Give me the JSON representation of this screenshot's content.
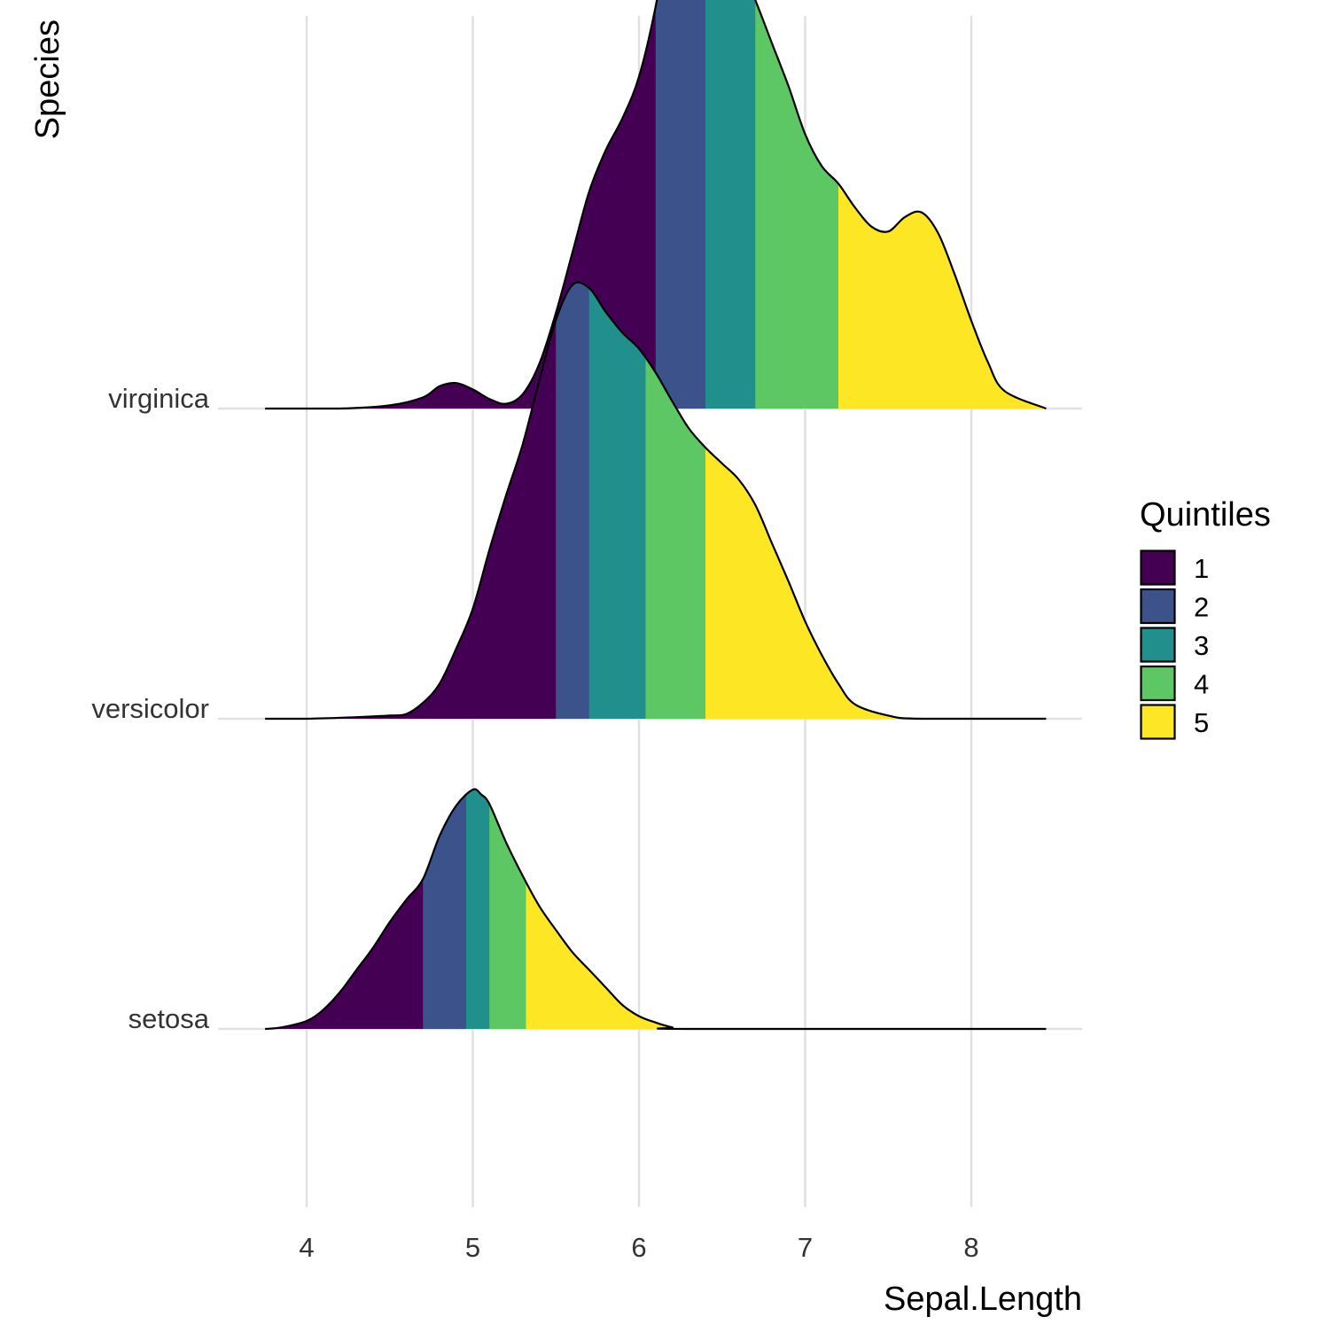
{
  "chart_data": {
    "type": "ridgeline",
    "xlabel": "Sepal.Length",
    "ylabel": "Species",
    "xlim": [
      3.75,
      8.45
    ],
    "x_ticks": [
      4,
      5,
      6,
      7,
      8
    ],
    "x_tick_labels": [
      "4",
      "5",
      "6",
      "7",
      "8"
    ],
    "grid": true,
    "legend": {
      "title": "Quintiles",
      "position": "right",
      "items": [
        {
          "label": "1",
          "color": "#440154"
        },
        {
          "label": "2",
          "color": "#3B528B"
        },
        {
          "label": "3",
          "color": "#21908C"
        },
        {
          "label": "4",
          "color": "#5DC863"
        },
        {
          "label": "5",
          "color": "#FDE725"
        }
      ]
    },
    "series": [
      {
        "name": "setosa",
        "quintile_breaks": [
          4.7,
          4.96,
          5.1,
          5.32
        ],
        "density_x": [
          3.75,
          3.85,
          4.0,
          4.1,
          4.2,
          4.3,
          4.4,
          4.5,
          4.6,
          4.7,
          4.8,
          4.9,
          5.0,
          5.05,
          5.1,
          5.2,
          5.3,
          5.4,
          5.5,
          5.6,
          5.7,
          5.8,
          5.9,
          6.0,
          6.1,
          6.2,
          6.3,
          8.45
        ],
        "density_y": [
          0.0,
          0.01,
          0.05,
          0.12,
          0.23,
          0.37,
          0.51,
          0.67,
          0.81,
          0.94,
          1.21,
          1.4,
          1.5,
          1.47,
          1.41,
          1.17,
          0.96,
          0.77,
          0.62,
          0.48,
          0.37,
          0.26,
          0.15,
          0.08,
          0.04,
          0.01,
          0.0,
          0.0
        ]
      },
      {
        "name": "versicolor",
        "quintile_breaks": [
          5.5,
          5.7,
          6.04,
          6.4
        ],
        "density_x": [
          3.75,
          4.0,
          4.3,
          4.5,
          4.6,
          4.7,
          4.8,
          4.9,
          5.0,
          5.1,
          5.2,
          5.3,
          5.4,
          5.5,
          5.6,
          5.7,
          5.8,
          5.9,
          6.0,
          6.1,
          6.2,
          6.3,
          6.4,
          6.5,
          6.6,
          6.7,
          6.8,
          6.9,
          7.0,
          7.1,
          7.2,
          7.3,
          7.5,
          7.7,
          8.45
        ],
        "density_y": [
          0.0,
          0.0,
          0.01,
          0.02,
          0.03,
          0.1,
          0.22,
          0.44,
          0.69,
          1.06,
          1.4,
          1.72,
          2.12,
          2.5,
          2.72,
          2.7,
          2.55,
          2.42,
          2.32,
          2.17,
          1.99,
          1.82,
          1.7,
          1.6,
          1.5,
          1.34,
          1.1,
          0.86,
          0.61,
          0.4,
          0.22,
          0.09,
          0.02,
          0.0,
          0.0
        ]
      },
      {
        "name": "virginica",
        "quintile_breaks": [
          6.1,
          6.4,
          6.7,
          7.2
        ],
        "density_x": [
          3.75,
          4.2,
          4.5,
          4.7,
          4.8,
          4.9,
          5.0,
          5.1,
          5.2,
          5.3,
          5.4,
          5.5,
          5.6,
          5.7,
          5.8,
          5.9,
          6.0,
          6.1,
          6.2,
          6.3,
          6.4,
          6.5,
          6.6,
          6.7,
          6.8,
          6.9,
          7.0,
          7.1,
          7.2,
          7.3,
          7.4,
          7.5,
          7.6,
          7.7,
          7.8,
          7.9,
          8.0,
          8.1,
          8.2,
          8.45
        ],
        "density_y": [
          0.0,
          0.0,
          0.02,
          0.07,
          0.14,
          0.16,
          0.12,
          0.06,
          0.03,
          0.09,
          0.28,
          0.6,
          0.98,
          1.36,
          1.62,
          1.82,
          2.08,
          2.52,
          3.12,
          3.45,
          3.57,
          3.28,
          2.8,
          2.56,
          2.29,
          2.02,
          1.72,
          1.52,
          1.41,
          1.26,
          1.14,
          1.11,
          1.2,
          1.23,
          1.1,
          0.84,
          0.55,
          0.29,
          0.11,
          0.0
        ]
      }
    ]
  }
}
